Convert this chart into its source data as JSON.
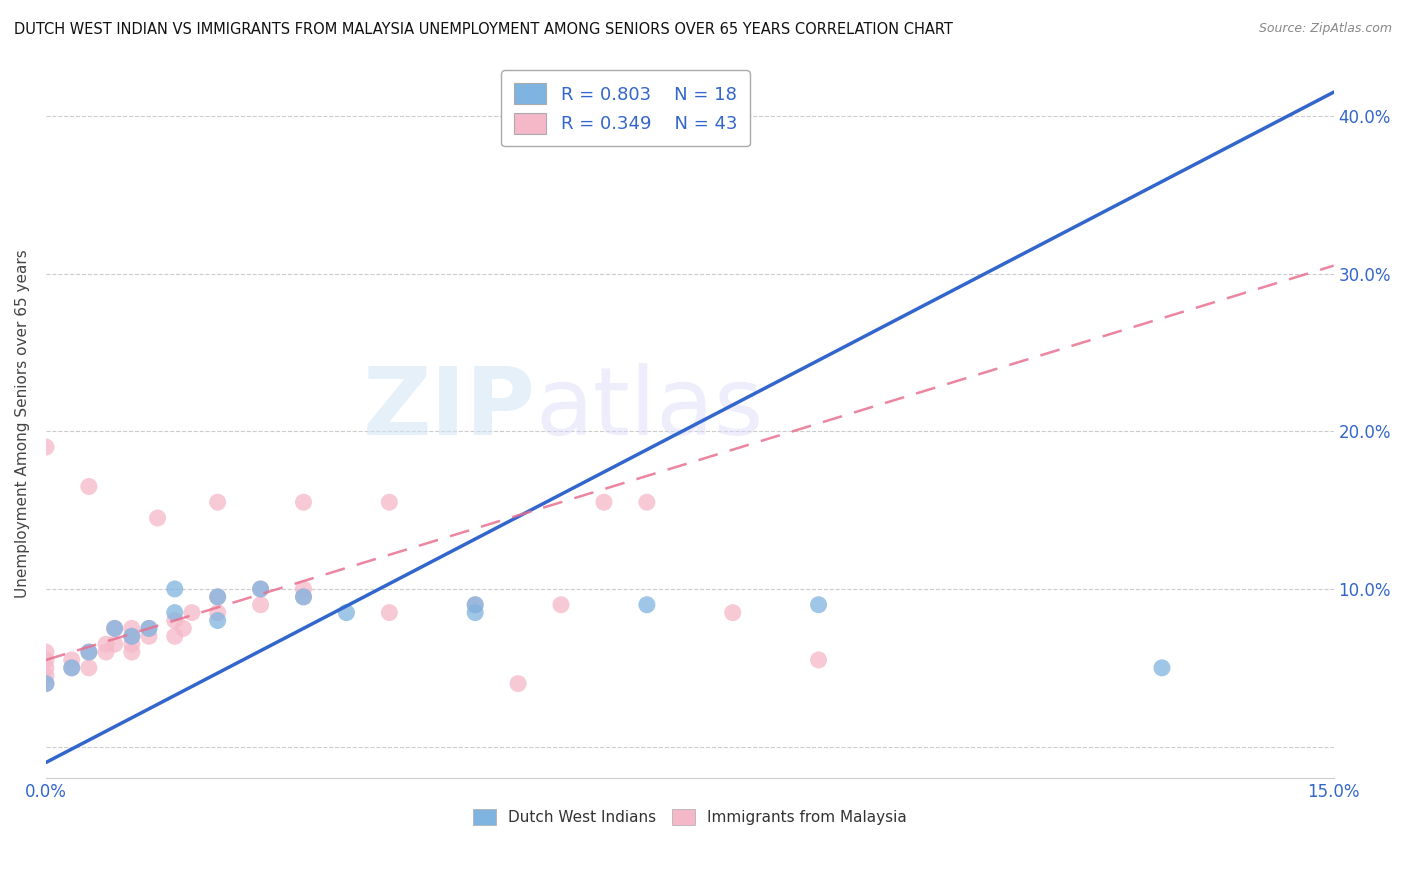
{
  "title": "DUTCH WEST INDIAN VS IMMIGRANTS FROM MALAYSIA UNEMPLOYMENT AMONG SENIORS OVER 65 YEARS CORRELATION CHART",
  "source": "Source: ZipAtlas.com",
  "ylabel": "Unemployment Among Seniors over 65 years",
  "xlim": [
    0.0,
    0.15
  ],
  "ylim": [
    -0.02,
    0.43
  ],
  "xticks": [
    0.0,
    0.05,
    0.1,
    0.15
  ],
  "xticklabels": [
    "0.0%",
    "",
    "",
    "15.0%"
  ],
  "yticks": [
    0.0,
    0.1,
    0.2,
    0.3,
    0.4
  ],
  "yticklabels_right": [
    "",
    "10.0%",
    "20.0%",
    "30.0%",
    "40.0%"
  ],
  "blue_color": "#7fb3e0",
  "pink_color": "#f5b8c8",
  "blue_line_color": "#3366cc",
  "pink_line_color": "#e87090",
  "legend_blue_R": "R = 0.803",
  "legend_blue_N": "N = 18",
  "legend_pink_R": "R = 0.349",
  "legend_pink_N": "N = 43",
  "watermark_zip": "ZIP",
  "watermark_atlas": "atlas",
  "background_color": "#ffffff",
  "blue_scatter_x": [
    0.0,
    0.003,
    0.005,
    0.008,
    0.01,
    0.012,
    0.015,
    0.015,
    0.02,
    0.02,
    0.025,
    0.03,
    0.035,
    0.05,
    0.05,
    0.07,
    0.09,
    0.13
  ],
  "blue_scatter_y": [
    0.04,
    0.05,
    0.06,
    0.075,
    0.07,
    0.075,
    0.1,
    0.085,
    0.08,
    0.095,
    0.1,
    0.095,
    0.085,
    0.09,
    0.085,
    0.09,
    0.09,
    0.05
  ],
  "pink_scatter_x": [
    0.0,
    0.0,
    0.0,
    0.0,
    0.0,
    0.0,
    0.003,
    0.003,
    0.005,
    0.005,
    0.005,
    0.007,
    0.007,
    0.008,
    0.008,
    0.01,
    0.01,
    0.01,
    0.01,
    0.012,
    0.012,
    0.013,
    0.015,
    0.015,
    0.016,
    0.017,
    0.02,
    0.02,
    0.02,
    0.025,
    0.025,
    0.03,
    0.03,
    0.03,
    0.04,
    0.04,
    0.05,
    0.055,
    0.06,
    0.065,
    0.07,
    0.08,
    0.09
  ],
  "pink_scatter_y": [
    0.04,
    0.045,
    0.05,
    0.055,
    0.06,
    0.19,
    0.05,
    0.055,
    0.05,
    0.06,
    0.165,
    0.06,
    0.065,
    0.065,
    0.075,
    0.06,
    0.065,
    0.07,
    0.075,
    0.07,
    0.075,
    0.145,
    0.07,
    0.08,
    0.075,
    0.085,
    0.085,
    0.095,
    0.155,
    0.09,
    0.1,
    0.095,
    0.1,
    0.155,
    0.085,
    0.155,
    0.09,
    0.04,
    0.09,
    0.155,
    0.155,
    0.085,
    0.055
  ],
  "blue_line_x0": 0.0,
  "blue_line_y0": -0.01,
  "blue_line_x1": 0.15,
  "blue_line_y1": 0.415,
  "pink_line_x0": 0.0,
  "pink_line_y0": 0.055,
  "pink_line_x1": 0.15,
  "pink_line_y1": 0.305
}
